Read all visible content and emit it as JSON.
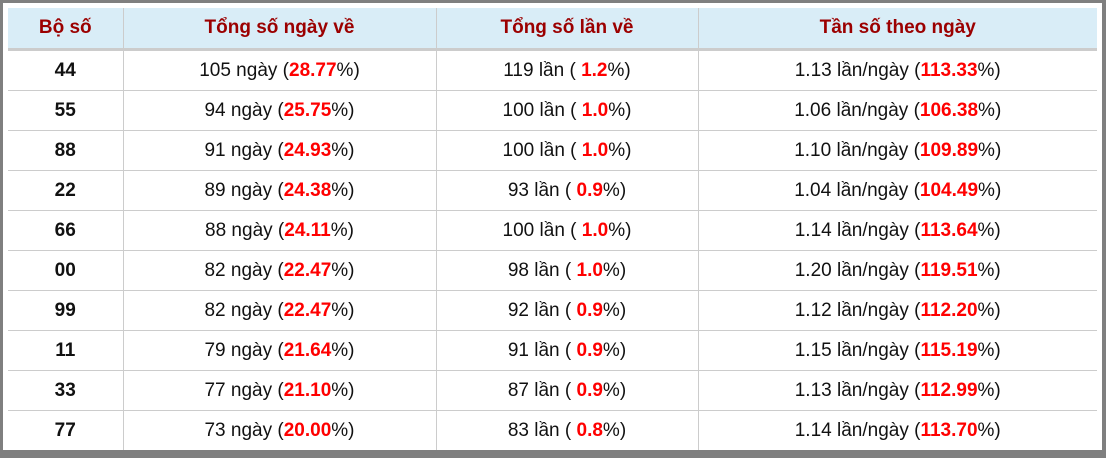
{
  "headers": [
    "Bộ số",
    "Tổng số ngày về",
    "Tổng số lần về",
    "Tần số theo ngày"
  ],
  "rows": [
    {
      "bo": "44",
      "days": "105",
      "days_pct": "28.77",
      "times": "119",
      "times_pct": "1.2",
      "freq": "1.13",
      "freq_pct": "113.33"
    },
    {
      "bo": "55",
      "days": "94",
      "days_pct": "25.75",
      "times": "100",
      "times_pct": "1.0",
      "freq": "1.06",
      "freq_pct": "106.38"
    },
    {
      "bo": "88",
      "days": "91",
      "days_pct": "24.93",
      "times": "100",
      "times_pct": "1.0",
      "freq": "1.10",
      "freq_pct": "109.89"
    },
    {
      "bo": "22",
      "days": "89",
      "days_pct": "24.38",
      "times": "93",
      "times_pct": "0.9",
      "freq": "1.04",
      "freq_pct": "104.49"
    },
    {
      "bo": "66",
      "days": "88",
      "days_pct": "24.11",
      "times": "100",
      "times_pct": "1.0",
      "freq": "1.14",
      "freq_pct": "113.64"
    },
    {
      "bo": "00",
      "days": "82",
      "days_pct": "22.47",
      "times": "98",
      "times_pct": "1.0",
      "freq": "1.20",
      "freq_pct": "119.51"
    },
    {
      "bo": "99",
      "days": "82",
      "days_pct": "22.47",
      "times": "92",
      "times_pct": "0.9",
      "freq": "1.12",
      "freq_pct": "112.20"
    },
    {
      "bo": "11",
      "days": "79",
      "days_pct": "21.64",
      "times": "91",
      "times_pct": "0.9",
      "freq": "1.15",
      "freq_pct": "115.19"
    },
    {
      "bo": "33",
      "days": "77",
      "days_pct": "21.10",
      "times": "87",
      "times_pct": "0.9",
      "freq": "1.13",
      "freq_pct": "112.99"
    },
    {
      "bo": "77",
      "days": "73",
      "days_pct": "20.00",
      "times": "83",
      "times_pct": "0.8",
      "freq": "1.14",
      "freq_pct": "113.70"
    }
  ],
  "units": {
    "days": " ngày (",
    "times": " lần ( ",
    "freq": " lần/ngày (",
    "pct_close": "%)"
  },
  "colors": {
    "header_bg": "#d9edf7",
    "header_text": "#9b0000",
    "highlight": "#ff0000"
  }
}
